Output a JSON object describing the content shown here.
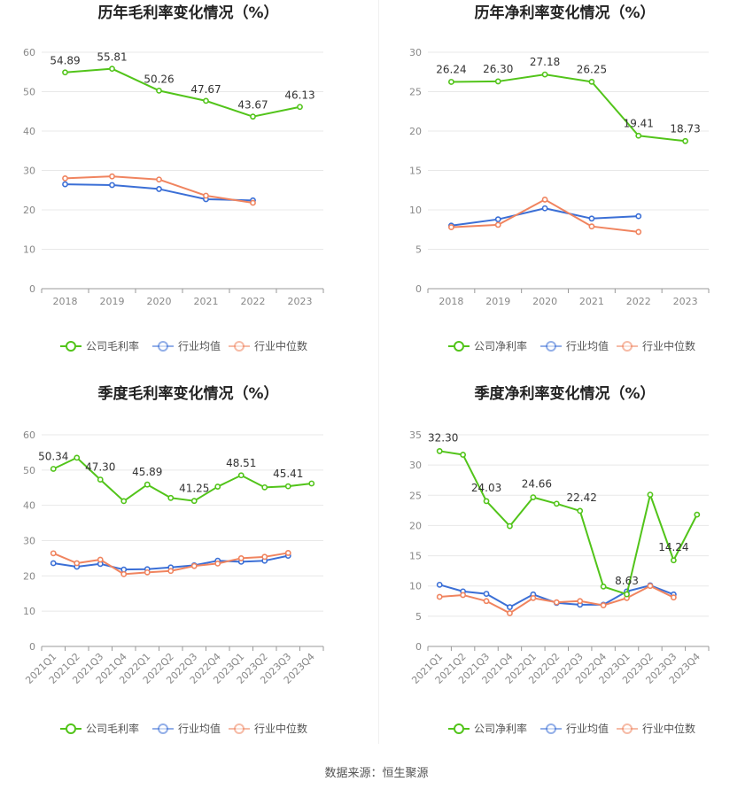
{
  "colors": {
    "company": "#52c41a",
    "industry_avg": "#3b6fd6",
    "industry_median": "#f0845f",
    "grid": "#e8e8e8",
    "axis": "#999999"
  },
  "legend": {
    "gross": [
      "公司毛利率",
      "行业均值",
      "行业中位数"
    ],
    "net": [
      "公司净利率",
      "行业均值",
      "行业中位数"
    ]
  },
  "footer": {
    "source": "数据来源：恒生聚源"
  },
  "chart_data": [
    {
      "id": "annual-gross",
      "type": "line",
      "title": "历年毛利率变化情况（%）",
      "categories": [
        "2018",
        "2019",
        "2020",
        "2021",
        "2022",
        "2023"
      ],
      "ylim": [
        0,
        60
      ],
      "yticks": [
        0,
        10,
        20,
        30,
        40,
        50,
        60
      ],
      "grid": true,
      "legend_position": "bottom",
      "series": [
        {
          "name": "公司毛利率",
          "role": "company",
          "values": [
            54.89,
            55.81,
            50.26,
            47.67,
            43.67,
            46.13
          ],
          "labels": [
            "54.89",
            "55.81",
            "50.26",
            "47.67",
            "43.67",
            "46.13"
          ]
        },
        {
          "name": "行业均值",
          "role": "industry_avg",
          "values": [
            26.5,
            26.3,
            25.3,
            22.7,
            22.4,
            null
          ]
        },
        {
          "name": "行业中位数",
          "role": "industry_median",
          "values": [
            28.0,
            28.5,
            27.7,
            23.6,
            21.8,
            null
          ]
        }
      ]
    },
    {
      "id": "annual-net",
      "type": "line",
      "title": "历年净利率变化情况（%）",
      "categories": [
        "2018",
        "2019",
        "2020",
        "2021",
        "2022",
        "2023"
      ],
      "ylim": [
        0,
        30
      ],
      "yticks": [
        0,
        5,
        10,
        15,
        20,
        25,
        30
      ],
      "grid": true,
      "legend_position": "bottom",
      "series": [
        {
          "name": "公司净利率",
          "role": "company",
          "values": [
            26.24,
            26.3,
            27.18,
            26.25,
            19.41,
            18.73
          ],
          "labels": [
            "26.24",
            "26.30",
            "27.18",
            "26.25",
            "19.41",
            "18.73"
          ]
        },
        {
          "name": "行业均值",
          "role": "industry_avg",
          "values": [
            8.0,
            8.8,
            10.2,
            8.9,
            9.2,
            null
          ]
        },
        {
          "name": "行业中位数",
          "role": "industry_median",
          "values": [
            7.8,
            8.1,
            11.3,
            7.9,
            7.2,
            null
          ]
        }
      ]
    },
    {
      "id": "quarterly-gross",
      "type": "line",
      "title": "季度毛利率变化情况（%）",
      "categories": [
        "2021Q1",
        "2021Q2",
        "2021Q3",
        "2021Q4",
        "2022Q1",
        "2022Q2",
        "2022Q3",
        "2022Q4",
        "2023Q1",
        "2023Q2",
        "2023Q3",
        "2023Q4"
      ],
      "ylim": [
        0,
        60
      ],
      "yticks": [
        0,
        10,
        20,
        30,
        40,
        50,
        60
      ],
      "grid": true,
      "legend_position": "bottom",
      "series": [
        {
          "name": "公司毛利率",
          "role": "company",
          "values": [
            50.34,
            53.5,
            47.3,
            41.2,
            45.89,
            42.1,
            41.25,
            45.3,
            48.51,
            45.1,
            45.41,
            46.2
          ],
          "labels": [
            "50.34",
            null,
            "47.30",
            null,
            "45.89",
            null,
            "41.25",
            null,
            "48.51",
            null,
            "45.41",
            null
          ]
        },
        {
          "name": "行业均值",
          "role": "industry_avg",
          "values": [
            23.6,
            22.6,
            23.4,
            21.8,
            21.9,
            22.4,
            23.0,
            24.3,
            24.0,
            24.3,
            25.7,
            null
          ]
        },
        {
          "name": "行业中位数",
          "role": "industry_median",
          "values": [
            26.4,
            23.6,
            24.6,
            20.5,
            21.0,
            21.4,
            22.8,
            23.5,
            25.0,
            25.4,
            26.5,
            null
          ]
        }
      ]
    },
    {
      "id": "quarterly-net",
      "type": "line",
      "title": "季度净利率变化情况（%）",
      "categories": [
        "2021Q1",
        "2021Q2",
        "2021Q3",
        "2021Q4",
        "2022Q1",
        "2022Q2",
        "2022Q3",
        "2022Q4",
        "2023Q1",
        "2023Q2",
        "2023Q3",
        "2023Q4"
      ],
      "ylim": [
        0,
        35
      ],
      "yticks": [
        0,
        5,
        10,
        15,
        20,
        25,
        30,
        35
      ],
      "grid": true,
      "legend_position": "bottom",
      "series": [
        {
          "name": "公司净利率",
          "role": "company",
          "values": [
            32.3,
            31.7,
            24.03,
            19.9,
            24.66,
            23.6,
            22.42,
            9.9,
            8.63,
            25.1,
            14.24,
            21.8
          ],
          "labels": [
            "32.30",
            null,
            "24.03",
            null,
            "24.66",
            null,
            "22.42",
            null,
            "8.63",
            null,
            "14.24",
            null
          ]
        },
        {
          "name": "行业均值",
          "role": "industry_avg",
          "values": [
            10.2,
            9.1,
            8.7,
            6.5,
            8.6,
            7.2,
            6.9,
            6.9,
            9.1,
            10.1,
            8.6,
            null
          ]
        },
        {
          "name": "行业中位数",
          "role": "industry_median",
          "values": [
            8.2,
            8.5,
            7.5,
            5.5,
            8.0,
            7.3,
            7.5,
            6.8,
            8.0,
            10.0,
            8.1,
            null
          ]
        }
      ]
    }
  ]
}
